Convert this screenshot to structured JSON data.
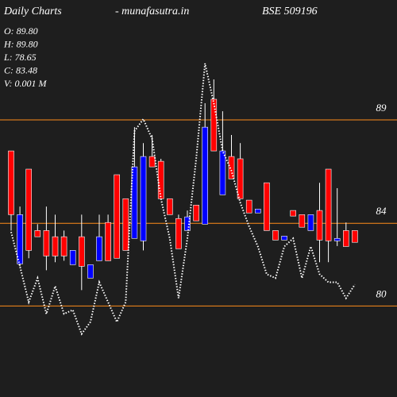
{
  "chart_data": {
    "type": "candlestick",
    "title": "Daily Charts",
    "subtitle": "-  munafasutra.in",
    "symbol": "BSE 509196",
    "info": [
      "O: 89.80",
      "H: 89.80",
      "L: 78.65",
      "C: 83.48",
      "V: 0.001 M"
    ],
    "up_color": "#0000ff",
    "down_color": "#ff0000",
    "line_color": "#ffffff",
    "grid_color": "#ff8c1a",
    "ylim": [
      75.6,
      94.8
    ],
    "yticks": [
      80,
      84,
      89
    ],
    "grid": true,
    "open": [
      87.5,
      82.04,
      86.62,
      83.65,
      83.65,
      83.35,
      83.35,
      82.0,
      83.35,
      81.35,
      82.19,
      84.04,
      86.35,
      85.19,
      83.27,
      83.15,
      87.23,
      87.0,
      85.19,
      84.23,
      83.65,
      84.88,
      83.96,
      90.0,
      85.38,
      87.23,
      87.12,
      85.12,
      84.5,
      85.96,
      83.65,
      83.19,
      84.62,
      84.42,
      83.65,
      84.62,
      86.62,
      83.15,
      83.65,
      83.65
    ],
    "high": [
      87.5,
      84.81,
      86.62,
      83.96,
      84.81,
      84.42,
      83.65,
      82.69,
      84.42,
      82.0,
      84.42,
      84.42,
      86.35,
      85.19,
      88.65,
      87.88,
      88.27,
      87.12,
      85.19,
      84.42,
      84.62,
      84.88,
      89.81,
      90.96,
      89.42,
      88.27,
      87.88,
      85.12,
      84.69,
      85.96,
      83.65,
      83.38,
      84.62,
      84.42,
      84.42,
      85.96,
      86.62,
      85.7,
      84.04,
      83.65
    ],
    "low": [
      83.65,
      81.92,
      82.31,
      83.35,
      81.73,
      82.12,
      82.19,
      82.0,
      80.77,
      81.35,
      82.19,
      82.19,
      82.31,
      82.69,
      83.27,
      82.69,
      86.73,
      85.19,
      84.42,
      82.77,
      83.65,
      84.12,
      83.96,
      87.5,
      85.38,
      86.15,
      85.19,
      84.5,
      84.5,
      83.65,
      83.19,
      83.19,
      84.35,
      83.81,
      83.65,
      82.12,
      82.12,
      82.9,
      82.88,
      83.08
    ],
    "close": [
      84.42,
      84.42,
      82.69,
      83.35,
      82.42,
      82.42,
      82.42,
      82.69,
      81.92,
      82.0,
      83.35,
      82.19,
      82.31,
      82.69,
      86.73,
      87.23,
      86.73,
      85.19,
      84.42,
      82.77,
      84.31,
      84.12,
      88.65,
      87.5,
      87.5,
      86.15,
      85.19,
      84.5,
      84.69,
      83.65,
      83.19,
      83.38,
      84.35,
      83.81,
      84.42,
      83.19,
      83.15,
      83.27,
      82.88,
      83.08
    ],
    "line_values": [
      83.58,
      81.92,
      80.19,
      81.35,
      79.62,
      80.96,
      79.62,
      79.81,
      78.65,
      79.23,
      81.15,
      80.19,
      79.23,
      80.19,
      88.46,
      89.04,
      88.08,
      85.19,
      83.27,
      80.38,
      83.27,
      87.12,
      91.73,
      89.81,
      87.5,
      86.54,
      85.0,
      83.85,
      82.88,
      81.54,
      81.35,
      82.88,
      83.27,
      81.35,
      82.88,
      81.54,
      81.15,
      81.15,
      80.38,
      81.04
    ]
  }
}
